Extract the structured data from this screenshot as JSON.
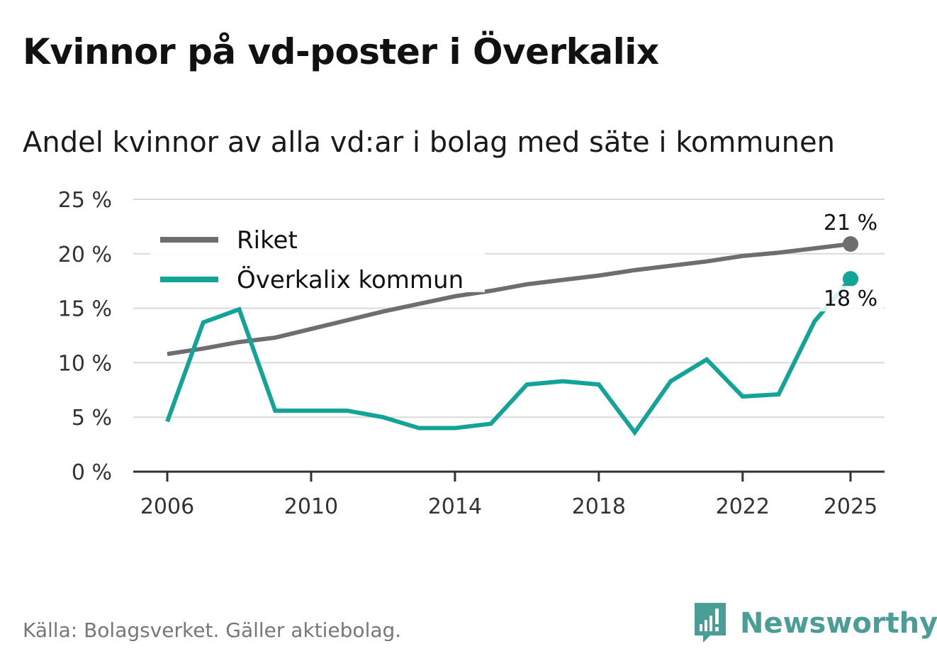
{
  "title": "Kvinnor på vd-poster i Överkalix",
  "subtitle": "Andel kvinnor av alla vd:ar i bolag med säte i kommunen",
  "source": "Källa: Bolagsverket. Gäller aktiebolag.",
  "brand": {
    "name": "Newsworthy",
    "color": "#4a9e96"
  },
  "chart_data": {
    "type": "line",
    "x": [
      2006,
      2007,
      2008,
      2009,
      2010,
      2011,
      2012,
      2013,
      2014,
      2015,
      2016,
      2017,
      2018,
      2019,
      2020,
      2021,
      2022,
      2023,
      2024,
      2025
    ],
    "ylim": [
      0,
      25
    ],
    "yticks": [
      {
        "value": 0,
        "label": "0 %"
      },
      {
        "value": 5,
        "label": "5 %"
      },
      {
        "value": 10,
        "label": "10 %"
      },
      {
        "value": 15,
        "label": "15 %"
      },
      {
        "value": 20,
        "label": "20 %"
      },
      {
        "value": 25,
        "label": "25 %"
      }
    ],
    "xticks": [
      {
        "value": 2006,
        "label": "2006"
      },
      {
        "value": 2010,
        "label": "2010"
      },
      {
        "value": 2014,
        "label": "2014"
      },
      {
        "value": 2018,
        "label": "2018"
      },
      {
        "value": 2022,
        "label": "2022"
      },
      {
        "value": 2025,
        "label": "2025"
      }
    ],
    "series": [
      {
        "name": "Riket",
        "color": "#6e6d72",
        "values": [
          10.8,
          11.3,
          11.9,
          12.3,
          13.1,
          13.9,
          14.7,
          15.4,
          16.1,
          16.6,
          17.2,
          17.6,
          18.0,
          18.5,
          18.9,
          19.3,
          19.8,
          20.1,
          20.5,
          20.9
        ],
        "end_label": "21 %"
      },
      {
        "name": "Överkalix kommun",
        "color": "#13a398",
        "values": [
          4.6,
          13.7,
          14.9,
          5.6,
          5.6,
          5.6,
          5.0,
          4.0,
          4.0,
          4.4,
          8.0,
          8.3,
          8.0,
          3.6,
          8.3,
          10.3,
          6.9,
          7.1,
          13.8,
          17.7
        ],
        "end_label": "18 %"
      }
    ],
    "legend_position": "top-left"
  }
}
